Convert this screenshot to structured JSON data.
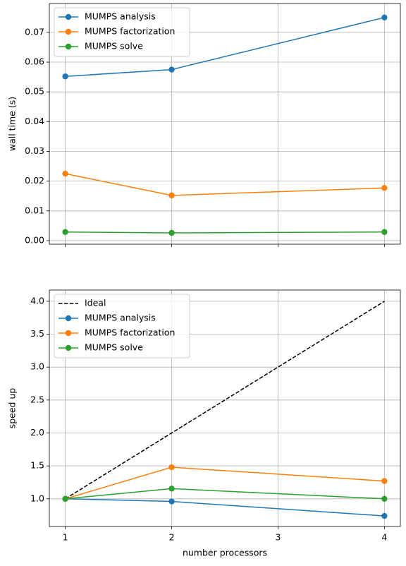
{
  "chart_data": [
    {
      "type": "line",
      "ylabel": "wall time (s)",
      "x": [
        1,
        2,
        4
      ],
      "xlim": [
        0.85,
        4.15
      ],
      "xticks": [
        1,
        2,
        3,
        4
      ],
      "show_xtick_labels": false,
      "ylim": [
        -0.0012,
        0.0797
      ],
      "yticks": [
        {
          "value": 0,
          "label": "0.00"
        },
        0.01,
        0.02,
        0.03,
        0.04,
        0.05,
        0.06,
        0.07
      ],
      "grid": true,
      "legend": "upper left",
      "series": [
        {
          "name": "MUMPS analysis",
          "color": "#1f77b4",
          "linestyle": "solid",
          "marker": "o",
          "values": [
            0.0552,
            0.0575,
            0.075
          ]
        },
        {
          "name": "MUMPS factorization",
          "color": "#ff7f0e",
          "linestyle": "solid",
          "marker": "o",
          "values": [
            0.0225,
            0.0152,
            0.0177
          ]
        },
        {
          "name": "MUMPS solve",
          "color": "#2ca02c",
          "linestyle": "solid",
          "marker": "o",
          "values": [
            0.0029,
            0.0026,
            0.0029
          ]
        }
      ]
    },
    {
      "type": "line",
      "ylabel": "speed up",
      "xlabel": "number processors",
      "x": [
        1,
        2,
        4
      ],
      "xlim": [
        0.85,
        4.15
      ],
      "xticks": [
        1,
        2,
        3,
        4
      ],
      "show_xtick_labels": true,
      "ylim": [
        0.58,
        4.17
      ],
      "yticks": [
        {
          "value": 1,
          "label": "1.0"
        },
        1.5,
        {
          "value": 2,
          "label": "2.0"
        },
        2.5,
        {
          "value": 3,
          "label": "3.0"
        },
        3.5,
        {
          "value": 4,
          "label": "4.0"
        }
      ],
      "grid": true,
      "legend": "upper left",
      "series": [
        {
          "name": "Ideal",
          "color": "#000000",
          "linestyle": "dashed",
          "marker": "none",
          "values": [
            1,
            2,
            4
          ]
        },
        {
          "name": "MUMPS analysis",
          "color": "#1f77b4",
          "linestyle": "solid",
          "marker": "o",
          "values": [
            1,
            0.96,
            0.74
          ]
        },
        {
          "name": "MUMPS factorization",
          "color": "#ff7f0e",
          "linestyle": "solid",
          "marker": "o",
          "values": [
            1,
            1.48,
            1.27
          ]
        },
        {
          "name": "MUMPS solve",
          "color": "#2ca02c",
          "linestyle": "solid",
          "marker": "o",
          "values": [
            1,
            1.155,
            1.0
          ]
        }
      ]
    }
  ]
}
